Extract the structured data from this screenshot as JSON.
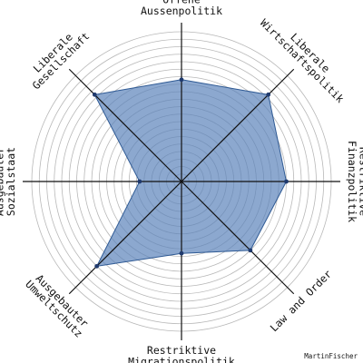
{
  "chart_data": {
    "type": "radar",
    "rmax": 10,
    "ring_step": 0.5,
    "grid": true,
    "axes": [
      {
        "line1": "Offene",
        "line2": "Aussenpolitik",
        "value": 6.8
      },
      {
        "line1": "Liberale",
        "line2": "Wirtschaftspolitik",
        "value": 8.2
      },
      {
        "line1": "Restriktive",
        "line2": "Finanzpolitik",
        "value": 7.0
      },
      {
        "line1": "Law and Order",
        "line2": "",
        "value": 6.5
      },
      {
        "line1": "Restriktive",
        "line2": "Migrationspolitik",
        "value": 4.8
      },
      {
        "line1": "Ausgebauter",
        "line2": "Umweltschutz",
        "value": 8.0
      },
      {
        "line1": "Ausgebauter",
        "line2": "Sozialstaat",
        "value": 2.8
      },
      {
        "line1": "Liberale",
        "line2": "Gesellschaft",
        "value": 8.2
      }
    ],
    "colors": {
      "fill": "#5b83ba",
      "stroke": "#2f5a94",
      "marker": "#1f3a6e",
      "grid": "#b8b8b8",
      "axis": "#111111"
    }
  },
  "credit": "MartinFischer"
}
